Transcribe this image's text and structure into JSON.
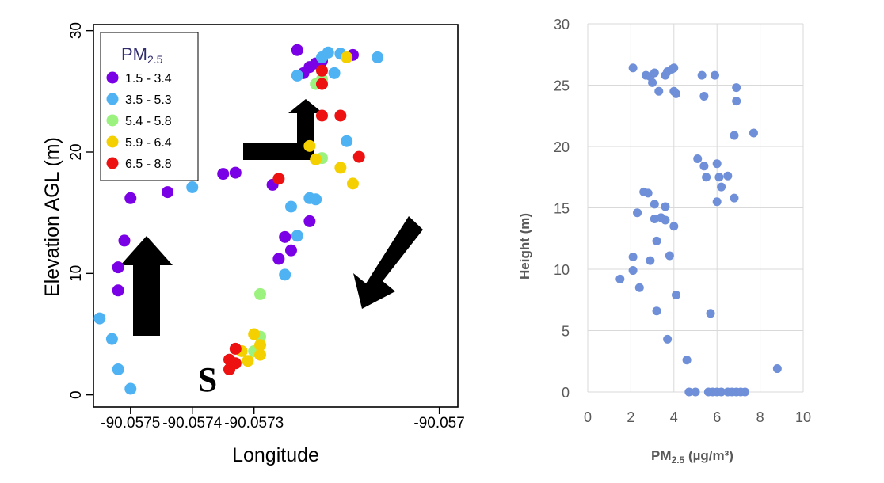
{
  "chart_data": [
    {
      "type": "scatter",
      "title": "",
      "xlabel": "Longitude",
      "ylabel": "Elevation AGL (m)",
      "xlim": [
        -90.05756,
        -90.05697
      ],
      "ylim": [
        -1,
        30.5
      ],
      "x_ticks": [
        -90.0575,
        -90.0574,
        -90.0573,
        -90.057
      ],
      "x_tick_labels": [
        "-90.0575",
        "-90.0574",
        "-90.0573",
        "-90.057"
      ],
      "y_ticks": [
        0,
        10,
        20,
        30
      ],
      "y_tick_labels": [
        "0",
        "10",
        "20",
        "30"
      ],
      "grid": false,
      "legend": {
        "title_main": "PM",
        "title_sub": "2.5",
        "placement": "top-left",
        "entries": [
          {
            "label": "1.5 - 3.4",
            "color": "#7a00e6"
          },
          {
            "label": "3.5 - 5.3",
            "color": "#4fb3f3"
          },
          {
            "label": "5.4 - 5.8",
            "color": "#9cf27f"
          },
          {
            "label": "5.9 - 6.4",
            "color": "#f5d000"
          },
          {
            "label": "6.5 - 8.8",
            "color": "#ee1111"
          }
        ]
      },
      "annotations": [
        {
          "text": "S",
          "kind": "start-marker"
        },
        {
          "kind": "arrow-up"
        },
        {
          "kind": "arrow-right-turn"
        },
        {
          "kind": "arrow-down-left"
        }
      ],
      "series": [
        {
          "name": "1.5 - 3.4",
          "color": "#7a00e6",
          "points": [
            [
              -90.05752,
              8.6
            ],
            [
              -90.05752,
              10.5
            ],
            [
              -90.05751,
              12.7
            ],
            [
              -90.0575,
              16.2
            ],
            [
              -90.05744,
              16.7
            ],
            [
              -90.05735,
              18.2
            ],
            [
              -90.05733,
              18.3
            ],
            [
              -90.05727,
              17.3
            ],
            [
              -90.05726,
              11.2
            ],
            [
              -90.05725,
              13.0
            ],
            [
              -90.05724,
              11.9
            ],
            [
              -90.05723,
              28.4
            ],
            [
              -90.05722,
              26.5
            ],
            [
              -90.05721,
              27.0
            ],
            [
              -90.05721,
              14.3
            ],
            [
              -90.0572,
              27.3
            ],
            [
              -90.05719,
              27.5
            ],
            [
              -90.05714,
              28.0
            ]
          ]
        },
        {
          "name": "3.5 - 5.3",
          "color": "#4fb3f3",
          "points": [
            [
              -90.05755,
              6.3
            ],
            [
              -90.05753,
              4.6
            ],
            [
              -90.05752,
              2.1
            ],
            [
              -90.0575,
              0.5
            ],
            [
              -90.0574,
              17.1
            ],
            [
              -90.05725,
              9.9
            ],
            [
              -90.05724,
              15.5
            ],
            [
              -90.05723,
              13.1
            ],
            [
              -90.05723,
              26.3
            ],
            [
              -90.05721,
              16.2
            ],
            [
              -90.0572,
              16.1
            ],
            [
              -90.05719,
              27.8
            ],
            [
              -90.05718,
              28.2
            ],
            [
              -90.05717,
              26.5
            ],
            [
              -90.05715,
              20.9
            ],
            [
              -90.0571,
              27.8
            ],
            [
              -90.05716,
              28.1
            ]
          ]
        },
        {
          "name": "5.4 - 5.8",
          "color": "#9cf27f",
          "points": [
            [
              -90.05729,
              8.3
            ],
            [
              -90.0573,
              3.6
            ],
            [
              -90.05729,
              4.8
            ],
            [
              -90.05719,
              19.5
            ],
            [
              -90.05719,
              26.0
            ],
            [
              -90.0572,
              25.6
            ]
          ]
        },
        {
          "name": "5.9 - 6.4",
          "color": "#f5d000",
          "points": [
            [
              -90.0573,
              5.0
            ],
            [
              -90.05729,
              4.1
            ],
            [
              -90.05729,
              3.3
            ],
            [
              -90.05731,
              2.8
            ],
            [
              -90.05732,
              3.6
            ],
            [
              -90.05721,
              20.5
            ],
            [
              -90.0572,
              19.4
            ],
            [
              -90.05716,
              18.7
            ],
            [
              -90.05714,
              17.4
            ],
            [
              -90.05715,
              27.8
            ]
          ]
        },
        {
          "name": "6.5 - 8.8",
          "color": "#ee1111",
          "points": [
            [
              -90.05734,
              2.1
            ],
            [
              -90.05734,
              2.9
            ],
            [
              -90.05733,
              2.6
            ],
            [
              -90.05733,
              3.8
            ],
            [
              -90.05726,
              17.8
            ],
            [
              -90.05719,
              26.7
            ],
            [
              -90.05719,
              25.6
            ],
            [
              -90.05719,
              23.0
            ],
            [
              -90.05716,
              23.0
            ],
            [
              -90.05713,
              19.6
            ]
          ]
        }
      ]
    },
    {
      "type": "scatter",
      "title": "",
      "xlabel_main": "PM",
      "xlabel_sub": "2.5",
      "xlabel_units": " (µg/m³)",
      "ylabel": "Height (m)",
      "xlim": [
        0,
        10
      ],
      "ylim": [
        0,
        30
      ],
      "x_ticks": [
        0,
        2,
        4,
        6,
        8,
        10
      ],
      "y_ticks": [
        0,
        5,
        10,
        15,
        20,
        25,
        30
      ],
      "grid": true,
      "marker_color": "#6f8fd8",
      "points": [
        [
          2.1,
          26.4
        ],
        [
          2.7,
          25.8
        ],
        [
          2.9,
          25.7
        ],
        [
          3.0,
          25.2
        ],
        [
          3.1,
          26.0
        ],
        [
          3.3,
          24.5
        ],
        [
          3.6,
          25.8
        ],
        [
          3.7,
          26.1
        ],
        [
          3.9,
          26.3
        ],
        [
          4.0,
          26.4
        ],
        [
          4.0,
          24.5
        ],
        [
          4.1,
          24.3
        ],
        [
          5.3,
          25.8
        ],
        [
          5.4,
          24.1
        ],
        [
          5.9,
          25.8
        ],
        [
          6.9,
          24.8
        ],
        [
          6.9,
          23.7
        ],
        [
          6.8,
          20.9
        ],
        [
          7.7,
          21.1
        ],
        [
          5.1,
          19.0
        ],
        [
          5.4,
          18.4
        ],
        [
          6.0,
          18.6
        ],
        [
          5.5,
          17.5
        ],
        [
          6.1,
          17.5
        ],
        [
          6.5,
          17.6
        ],
        [
          6.2,
          16.7
        ],
        [
          6.8,
          15.8
        ],
        [
          6.0,
          15.5
        ],
        [
          2.6,
          16.3
        ],
        [
          2.8,
          16.2
        ],
        [
          3.1,
          15.3
        ],
        [
          3.6,
          15.1
        ],
        [
          2.3,
          14.6
        ],
        [
          3.1,
          14.1
        ],
        [
          3.4,
          14.2
        ],
        [
          3.6,
          14.0
        ],
        [
          4.0,
          13.5
        ],
        [
          3.2,
          12.3
        ],
        [
          3.8,
          11.1
        ],
        [
          2.1,
          11.0
        ],
        [
          2.9,
          10.7
        ],
        [
          2.1,
          9.9
        ],
        [
          1.5,
          9.2
        ],
        [
          2.4,
          8.5
        ],
        [
          4.1,
          7.9
        ],
        [
          3.2,
          6.6
        ],
        [
          5.7,
          6.4
        ],
        [
          3.7,
          4.3
        ],
        [
          4.6,
          2.6
        ],
        [
          8.8,
          1.9
        ],
        [
          4.7,
          0
        ],
        [
          5.0,
          0
        ],
        [
          5.6,
          0
        ],
        [
          5.8,
          0
        ],
        [
          6.0,
          0
        ],
        [
          6.2,
          0
        ],
        [
          6.5,
          0
        ],
        [
          6.7,
          0
        ],
        [
          6.9,
          0
        ],
        [
          7.1,
          0
        ],
        [
          7.3,
          0
        ]
      ]
    }
  ]
}
